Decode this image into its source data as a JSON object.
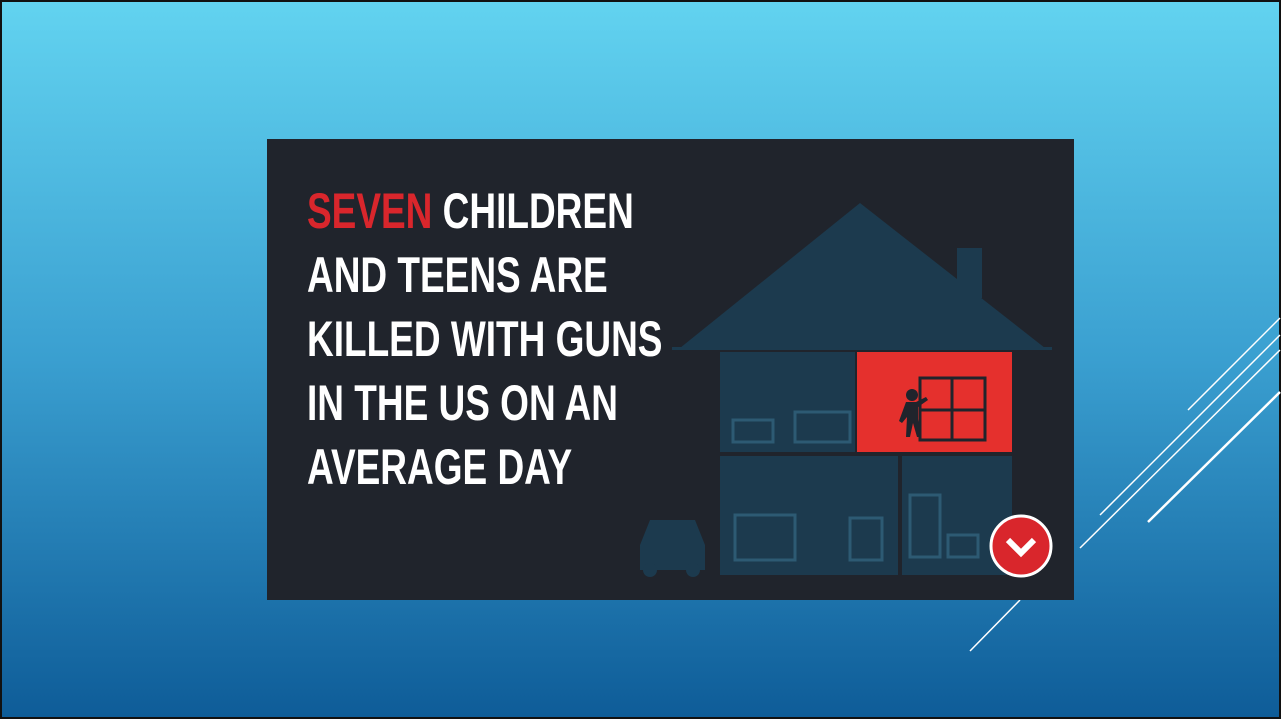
{
  "slide": {
    "headline": {
      "highlight": "SEVEN",
      "lines": [
        "CHILDREN",
        "AND TEENS ARE",
        "KILLED WITH GUNS",
        "IN THE US ON AN",
        "AVERAGE DAY"
      ]
    }
  }
}
